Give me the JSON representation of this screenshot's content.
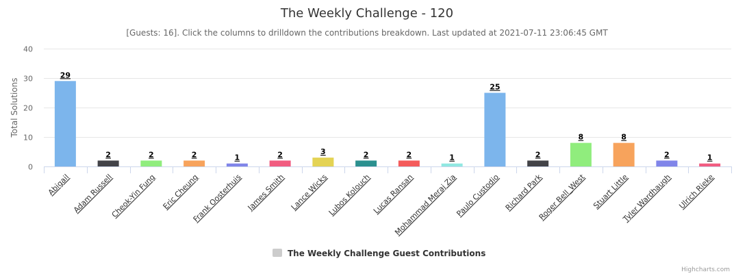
{
  "chart_data": {
    "type": "bar",
    "title": "The Weekly Challenge - 120",
    "subtitle": "[Guests: 16]. Click the columns to drilldown the contributions breakdown. Last updated at 2021-07-11 23:06:45 GMT",
    "xlabel": "",
    "ylabel": "Total Solutions",
    "ylim": [
      0,
      40
    ],
    "yticks": [
      0,
      10,
      20,
      30,
      40
    ],
    "grid": true,
    "legend_position": "bottom-center",
    "categories": [
      "Abigail",
      "Adam Russell",
      "Cheok-Yin Fung",
      "Eric Cheung",
      "Frank Oosterhuis",
      "James Smith",
      "Lance Wicks",
      "Lubos Kolouch",
      "Lucas Ransan",
      "Mohammad Meraj Zia",
      "Paulo Custodio",
      "Richard Park",
      "Roger Bell_West",
      "Stuart Little",
      "Tyler Wardhaugh",
      "Ulrich Rieke"
    ],
    "series": [
      {
        "name": "The Weekly Challenge Guest Contributions",
        "values": [
          29,
          2,
          2,
          2,
          1,
          2,
          3,
          2,
          2,
          1,
          25,
          2,
          8,
          8,
          2,
          1
        ]
      }
    ],
    "colors": [
      "#7cb5ec",
      "#434348",
      "#90ed7d",
      "#f7a35c",
      "#8085e9",
      "#f15c80",
      "#e4d354",
      "#2b908f",
      "#f45b5b",
      "#91e8e1",
      "#7cb5ec",
      "#434348",
      "#90ed7d",
      "#f7a35c",
      "#8085e9",
      "#f15c80"
    ]
  },
  "credits": "Highcharts.com",
  "legend_symbol_color": "#cccccc"
}
